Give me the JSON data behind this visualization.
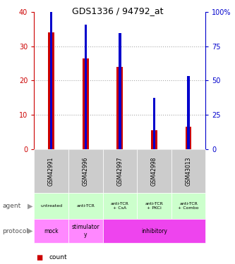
{
  "title": "GDS1336 / 94792_at",
  "samples": [
    "GSM42991",
    "GSM42996",
    "GSM42997",
    "GSM42998",
    "GSM43013"
  ],
  "count_values": [
    34.0,
    26.5,
    24.0,
    5.5,
    6.5
  ],
  "percentile_values": [
    42.5,
    36.25,
    33.75,
    15.0,
    21.25
  ],
  "ylim_left": [
    0,
    40
  ],
  "ylim_right": [
    0,
    100
  ],
  "yticks_left": [
    0,
    10,
    20,
    30,
    40
  ],
  "yticks_right": [
    0,
    25,
    50,
    75,
    100
  ],
  "ytick_labels_right": [
    "0",
    "25",
    "50",
    "75",
    "100%"
  ],
  "bar_color_count": "#cc0000",
  "bar_color_pct": "#0000cc",
  "grid_color": "#aaaaaa",
  "agent_labels": [
    "untreated",
    "anti-TCR",
    "anti-TCR\n+ CsA",
    "anti-TCR\n+ PKCi",
    "anti-TCR\n+ Combo"
  ],
  "agent_bg": "#ccffcc",
  "sample_bg": "#cccccc",
  "protocol_defs": [
    [
      0,
      1,
      "mock",
      "#ff88ff"
    ],
    [
      1,
      1,
      "stimulator\ny",
      "#ff88ff"
    ],
    [
      2,
      3,
      "inhibitory",
      "#ee44ee"
    ]
  ],
  "legend_count_color": "#cc0000",
  "legend_pct_color": "#0000cc",
  "left_label_color": "#555555",
  "arrow_color": "#999999"
}
